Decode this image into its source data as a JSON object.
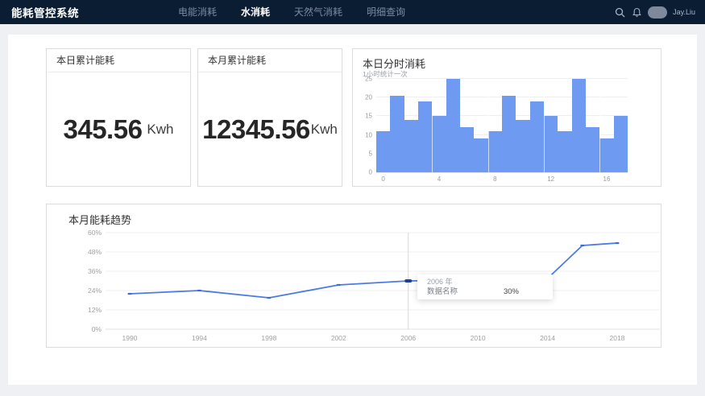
{
  "navbar": {
    "brand": "能耗管控系统",
    "items": [
      {
        "label": "电能消耗",
        "active": false
      },
      {
        "label": "水消耗",
        "active": true
      },
      {
        "label": "天然气消耗",
        "active": false
      },
      {
        "label": "明细查询",
        "active": false
      }
    ],
    "icons": [
      "search-icon",
      "bell-icon",
      "avatar"
    ],
    "user": "Jay.Liu"
  },
  "stats": [
    {
      "title": "本日累计能耗",
      "value": "345.56",
      "unit": "Kwh"
    },
    {
      "title": "本月累计能耗",
      "value": "12345.56",
      "unit": "Kwh"
    }
  ],
  "hourly": {
    "title": "本日分时消耗",
    "subtitle": "1小时统计一次"
  },
  "trend": {
    "title": "本月能耗趋势",
    "tooltip": {
      "year": "2006 年",
      "series": "数据名称",
      "value": "30%"
    }
  },
  "colors": {
    "navbar_bg": "#0a1d33",
    "page_bg": "#eef0f4",
    "bar": "#6e9af1",
    "line": "#4b7be5",
    "marker": "#3b6be0",
    "highlight_marker": "#1d3f96",
    "crosshair": "#d8d8d8"
  },
  "chart_data": [
    {
      "type": "bar",
      "title": "本日分时消耗",
      "subtitle": "1小时统计一次",
      "x": [
        0,
        1,
        2,
        3,
        4,
        5,
        6,
        7,
        8,
        9,
        10,
        11,
        12,
        13,
        14,
        15,
        16,
        17
      ],
      "values": [
        11,
        20.5,
        14,
        19,
        15,
        25,
        12,
        9,
        11,
        20.5,
        14,
        19,
        15,
        11,
        25,
        12,
        9,
        15
      ],
      "xticks": [
        0,
        4,
        8,
        12,
        16
      ],
      "yticks": [
        0,
        5,
        10,
        15,
        20,
        25
      ],
      "ylim": [
        0,
        25
      ],
      "xlabel": "",
      "ylabel": "",
      "grid": true,
      "legend": "none"
    },
    {
      "type": "line",
      "title": "本月能耗趋势",
      "x": [
        1990,
        1994,
        1998,
        2002,
        2006,
        2010,
        2014,
        2016,
        2018
      ],
      "values": [
        22,
        24,
        19.5,
        27.5,
        30,
        30.5,
        31.5,
        52,
        53.5
      ],
      "xticks": [
        1990,
        1994,
        1998,
        2002,
        2006,
        2010,
        2014,
        2018
      ],
      "yticks_pct": [
        0,
        12,
        24,
        36,
        48,
        60
      ],
      "ytick_labels": [
        "0%",
        "12%",
        "24%",
        "36%",
        "48%",
        "60%"
      ],
      "ylim": [
        0,
        60
      ],
      "xlabel": "",
      "ylabel": "",
      "grid": true,
      "legend": "none",
      "highlight": {
        "x": 2006,
        "value_pct": 30,
        "tooltip_year": "2006 年",
        "tooltip_series": "数据名称",
        "tooltip_value": "30%"
      }
    }
  ]
}
